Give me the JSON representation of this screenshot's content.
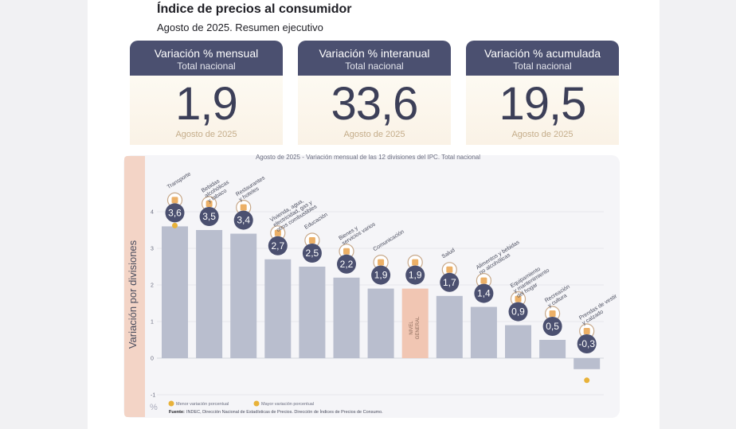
{
  "header": {
    "title": "Índice de precios al consumidor",
    "subtitle": "Agosto de 2025. Resumen ejecutivo"
  },
  "cards": [
    {
      "label": "Variación % mensual",
      "sublabel": "Total nacional",
      "value": "1,9",
      "period": "Agosto de 2025"
    },
    {
      "label": "Variación % interanual",
      "sublabel": "Total nacional",
      "value": "33,6",
      "period": "Agosto de 2025"
    },
    {
      "label": "Variación % acumulada",
      "sublabel": "Total nacional",
      "value": "19,5",
      "period": "Agosto de 2025"
    }
  ],
  "colors": {
    "card_header": "#4b5070",
    "bar": "#b9bece",
    "bar_highlight": "#f1c6b3",
    "badge": "#4b5070",
    "dot": "#e8b23a",
    "ylabel_band": "#f3d4c6"
  },
  "chart_data": {
    "type": "bar",
    "title": "Agosto de 2025 - Variación mensual de las 12 divisiones del IPC. Total nacional",
    "ylabel": "Variación por divisiones",
    "unit_label": "%",
    "ylim": [
      -1,
      4
    ],
    "yticks": [
      4,
      3,
      2,
      1,
      0,
      -1
    ],
    "categories": [
      "Transporte",
      "Bebidas alcohólicas y tabaco",
      "Restaurantes y hoteles",
      "Vivienda, agua, electricidad, gas y otros combustibles",
      "Educación",
      "Bienes y servicios varios",
      "Comunicación",
      "Nivel general",
      "Salud",
      "Alimentos y bebidas no alcohólicas",
      "Equipamiento y mantenimiento del hogar",
      "Recreación y cultura",
      "Prendas de vestir y calzado"
    ],
    "category_lines": [
      [
        "Transporte"
      ],
      [
        "Bebidas",
        "alcohólicas",
        "y tabaco"
      ],
      [
        "Restaurantes",
        "y hoteles"
      ],
      [
        "Vivienda, agua,",
        "electricidad, gas y",
        "otros combustibles"
      ],
      [
        "Educación"
      ],
      [
        "Bienes y",
        "servicios varios"
      ],
      [
        "Comunicación"
      ],
      [],
      [
        "Salud"
      ],
      [
        "Alimentos y bebidas",
        "no alcohólicas"
      ],
      [
        "Equipamiento",
        "y mantenimiento",
        "del hogar"
      ],
      [
        "Recreación",
        "y cultura"
      ],
      [
        "Prendas de vestir",
        "y calzado"
      ]
    ],
    "bar_inside_label": "NIVEL GENERAL",
    "values": [
      3.6,
      3.5,
      3.4,
      2.7,
      2.5,
      2.2,
      1.9,
      1.9,
      1.7,
      1.4,
      0.9,
      0.5,
      -0.3
    ],
    "value_labels": [
      "3,6",
      "3,5",
      "3,4",
      "2,7",
      "2,5",
      "2,2",
      "1,9",
      "1,9",
      "1,7",
      "1,4",
      "0,9",
      "0,5",
      "-0,3"
    ],
    "highlight_index": 7,
    "icons": [
      "bus-icon",
      "wine-icon",
      "utensils-icon",
      "lightbulb-icon",
      "pencil-icon",
      "razor-icon",
      "smartphone-icon",
      "market-basket-icon",
      "medical-cross-icon",
      "food-icon",
      "appliance-icon",
      "sun-icon",
      "clothing-icon"
    ],
    "marker_min_index": 12,
    "marker_max_index": 0,
    "legend": {
      "min": "Menor variación porcentual",
      "max": "Mayor variación porcentual"
    },
    "source_label": "Fuente:",
    "source": "INDEC, Dirección Nacional de Estadísticas de Precios. Dirección de Índices de Precios de Consumo."
  }
}
